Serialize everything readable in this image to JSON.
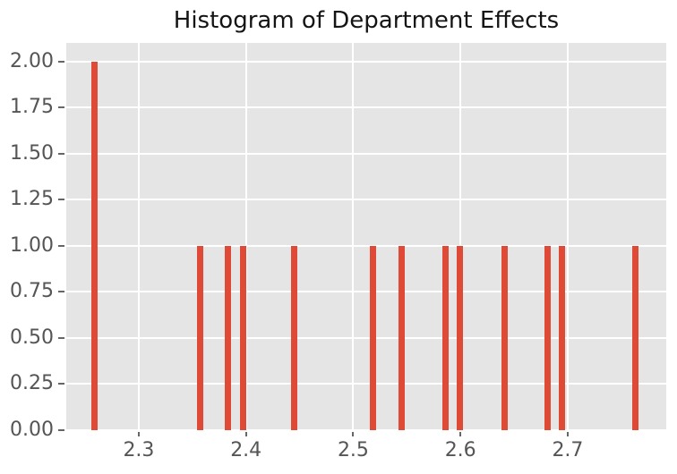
{
  "chart_data": {
    "type": "bar",
    "subtype": "histogram",
    "title": "Histogram of Department Effects",
    "xlabel": "",
    "ylabel": "",
    "x": [
      2.259,
      2.357,
      2.383,
      2.397,
      2.445,
      2.518,
      2.545,
      2.586,
      2.599,
      2.641,
      2.681,
      2.695,
      2.763
    ],
    "values": [
      2,
      1,
      1,
      1,
      1,
      1,
      1,
      1,
      1,
      1,
      1,
      1,
      1
    ],
    "bar_width_x": 0.006,
    "xlim": [
      2.2324,
      2.7919
    ],
    "ylim": [
      0,
      2.1
    ],
    "xticks": {
      "values": [
        2.3,
        2.4,
        2.5,
        2.6,
        2.7
      ],
      "labels": [
        "2.3",
        "2.4",
        "2.5",
        "2.6",
        "2.7"
      ]
    },
    "yticks": {
      "values": [
        0,
        0.25,
        0.5,
        0.75,
        1.0,
        1.25,
        1.5,
        1.75,
        2.0
      ],
      "labels": [
        "0.00",
        "0.25",
        "0.50",
        "0.75",
        "1.00",
        "1.25",
        "1.50",
        "1.75",
        "2.00"
      ]
    },
    "grid": true,
    "legend": false,
    "style": {
      "figure_bg": "#FFFFFF",
      "plot_bg": "#E5E5E5",
      "grid_color": "#FFFFFF",
      "bar_color": "#DE4A35",
      "title_color": "#141414",
      "tick_label_color": "#555555",
      "tick_mark_color": "#666666"
    }
  }
}
